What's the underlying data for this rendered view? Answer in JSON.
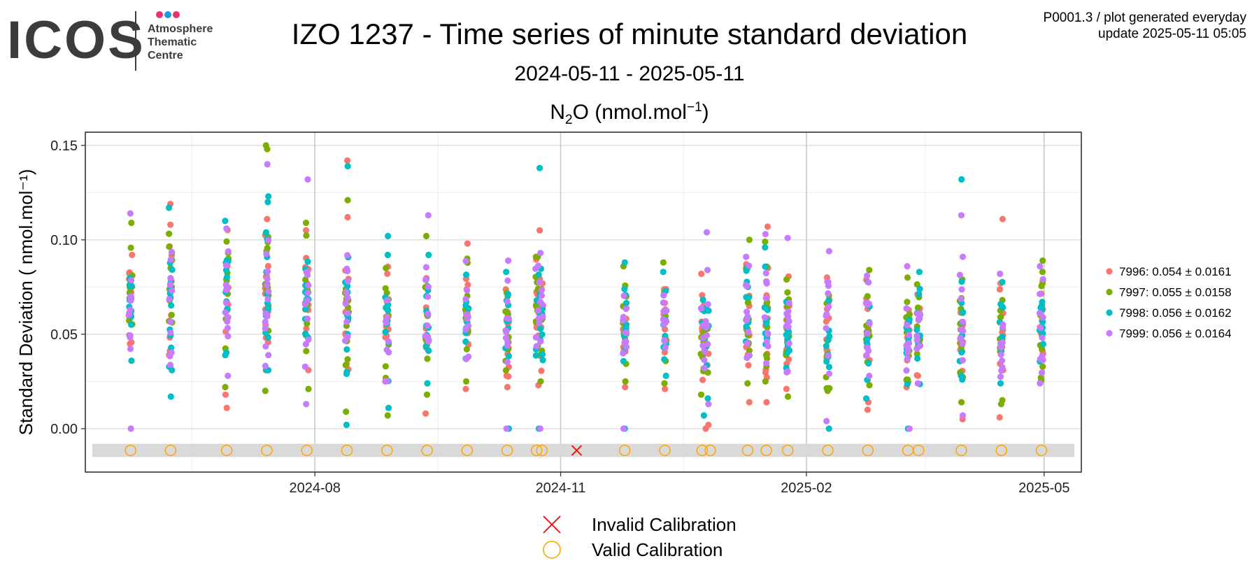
{
  "header": {
    "logo_text": "ICOS",
    "logo_subtitle": [
      "Atmosphere",
      "Thematic",
      "Centre"
    ],
    "logo_dot_colors": [
      "#e8336c",
      "#1a9ae0",
      "#e8336c"
    ],
    "corner_line1": "P0001.3 / plot generated everyday",
    "corner_line2": "update  2025-05-11 05:05"
  },
  "chart_data": {
    "type": "scatter",
    "title": "IZO 1237 - Time series of minute standard deviation",
    "subtitle": "2024-05-11 - 2025-05-11",
    "species": {
      "base": "N",
      "sub": "2",
      "mid": "O (nmol.mol",
      "sup": "−1",
      "end": ")"
    },
    "ylabel": "Standard Deviation ( nmol.mol⁻¹)",
    "xlim": [
      "2024-05-11",
      "2025-05-11"
    ],
    "ylim": [
      -0.023,
      0.157
    ],
    "yticks": [
      0.0,
      0.05,
      0.1,
      0.15
    ],
    "ytick_labels": [
      "0.00",
      "0.05",
      "0.10",
      "0.15"
    ],
    "xticks": [
      "2024-08-01",
      "2024-11-01",
      "2025-02-01",
      "2025-05-01"
    ],
    "xtick_labels": [
      "2024-08",
      "2024-11",
      "2025-02",
      "2025-05"
    ],
    "grid": true,
    "legend_position": "right",
    "series": [
      {
        "name": "7996",
        "label": "7996: 0.054 ± 0.0161",
        "color": "#f8766d"
      },
      {
        "name": "7997",
        "label": "7997: 0.055 ± 0.0158",
        "color": "#7cae00"
      },
      {
        "name": "7998",
        "label": "7998: 0.056 ± 0.0162",
        "color": "#00bfc4"
      },
      {
        "name": "7999",
        "label": "7999: 0.056 ± 0.0164",
        "color": "#c77cff"
      }
    ],
    "calibration_band": [
      -0.015,
      -0.008
    ],
    "calibration_y": -0.0115,
    "calibration_legend": [
      {
        "label": "Invalid Calibration",
        "marker": "cross",
        "color": "#ff0000"
      },
      {
        "label": "Valid Calibration",
        "marker": "circle",
        "color": "#ffa500"
      }
    ],
    "valid_calibrations": [
      "2024-05-24",
      "2024-06-08",
      "2024-06-29",
      "2024-07-14",
      "2024-07-29",
      "2024-08-13",
      "2024-08-28",
      "2024-09-12",
      "2024-09-27",
      "2024-10-12",
      "2024-10-23",
      "2024-10-25",
      "2024-11-25",
      "2024-12-10",
      "2024-12-24",
      "2024-12-27",
      "2025-01-10",
      "2025-01-17",
      "2025-01-25",
      "2025-02-09",
      "2025-02-24",
      "2025-03-11",
      "2025-03-15",
      "2025-03-31",
      "2025-04-15",
      "2025-04-30"
    ],
    "invalid_calibrations": [
      "2024-11-07"
    ],
    "clusters": [
      {
        "date": "2024-05-24",
        "width_days": 1,
        "center": 0.065,
        "spread": 0.014,
        "n": 40,
        "highs": [
          [
            3,
            0.114
          ],
          [
            1,
            0.109
          ],
          [
            0,
            0.092
          ]
        ],
        "lows": [
          [
            3,
            0.0
          ],
          [
            2,
            0.036
          ]
        ]
      },
      {
        "date": "2024-06-08",
        "width_days": 1,
        "center": 0.068,
        "spread": 0.016,
        "n": 44,
        "highs": [
          [
            0,
            0.119
          ],
          [
            2,
            0.117
          ],
          [
            0,
            0.108
          ]
        ],
        "lows": [
          [
            2,
            0.017
          ],
          [
            2,
            0.031
          ],
          [
            0,
            0.039
          ]
        ]
      },
      {
        "date": "2024-06-29",
        "width_days": 1,
        "center": 0.07,
        "spread": 0.016,
        "n": 44,
        "highs": [
          [
            2,
            0.11
          ],
          [
            3,
            0.106
          ]
        ],
        "lows": [
          [
            0,
            0.011
          ],
          [
            0,
            0.018
          ],
          [
            1,
            0.022
          ],
          [
            3,
            0.028
          ]
        ]
      },
      {
        "date": "2024-07-14",
        "width_days": 1,
        "center": 0.075,
        "spread": 0.02,
        "n": 56,
        "highs": [
          [
            1,
            0.15
          ],
          [
            1,
            0.148
          ],
          [
            3,
            0.14
          ],
          [
            2,
            0.123
          ],
          [
            2,
            0.12
          ]
        ],
        "lows": [
          [
            1,
            0.02
          ],
          [
            2,
            0.031
          ]
        ]
      },
      {
        "date": "2024-07-29",
        "width_days": 1,
        "center": 0.068,
        "spread": 0.016,
        "n": 44,
        "highs": [
          [
            3,
            0.132
          ],
          [
            1,
            0.109
          ],
          [
            0,
            0.105
          ]
        ],
        "lows": [
          [
            3,
            0.013
          ],
          [
            1,
            0.021
          ],
          [
            0,
            0.031
          ]
        ]
      },
      {
        "date": "2024-08-13",
        "width_days": 1,
        "center": 0.064,
        "spread": 0.016,
        "n": 44,
        "highs": [
          [
            0,
            0.142
          ],
          [
            2,
            0.139
          ],
          [
            1,
            0.121
          ],
          [
            0,
            0.112
          ]
        ],
        "lows": [
          [
            2,
            0.002
          ],
          [
            1,
            0.009
          ],
          [
            2,
            0.03
          ]
        ]
      },
      {
        "date": "2024-08-28",
        "width_days": 1,
        "center": 0.056,
        "spread": 0.014,
        "n": 40,
        "highs": [
          [
            2,
            0.102
          ],
          [
            2,
            0.092
          ]
        ],
        "lows": [
          [
            1,
            0.007
          ],
          [
            2,
            0.011
          ],
          [
            0,
            0.025
          ]
        ]
      },
      {
        "date": "2024-09-12",
        "width_days": 1,
        "center": 0.058,
        "spread": 0.014,
        "n": 40,
        "highs": [
          [
            3,
            0.113
          ],
          [
            1,
            0.102
          ],
          [
            2,
            0.092
          ]
        ],
        "lows": [
          [
            0,
            0.008
          ],
          [
            1,
            0.018
          ],
          [
            2,
            0.024
          ]
        ]
      },
      {
        "date": "2024-09-27",
        "width_days": 1,
        "center": 0.058,
        "spread": 0.014,
        "n": 42,
        "highs": [
          [
            0,
            0.098
          ],
          [
            1,
            0.09
          ]
        ],
        "lows": [
          [
            0,
            0.021
          ],
          [
            1,
            0.025
          ]
        ]
      },
      {
        "date": "2024-10-12",
        "width_days": 1,
        "center": 0.052,
        "spread": 0.012,
        "n": 40,
        "highs": [
          [
            3,
            0.089
          ],
          [
            2,
            0.083
          ]
        ],
        "lows": [
          [
            3,
            0.0
          ],
          [
            2,
            0.0
          ],
          [
            0,
            0.022
          ],
          [
            0,
            0.028
          ]
        ]
      },
      {
        "date": "2024-10-24",
        "width_days": 3,
        "center": 0.058,
        "spread": 0.015,
        "n": 60,
        "highs": [
          [
            2,
            0.138
          ],
          [
            0,
            0.105
          ],
          [
            3,
            0.093
          ],
          [
            1,
            0.091
          ]
        ],
        "lows": [
          [
            3,
            0.0
          ],
          [
            2,
            0.0
          ],
          [
            0,
            0.023
          ],
          [
            1,
            0.025
          ]
        ]
      },
      {
        "date": "2024-11-25",
        "width_days": 1,
        "center": 0.052,
        "spread": 0.012,
        "n": 40,
        "highs": [
          [
            2,
            0.088
          ],
          [
            1,
            0.086
          ]
        ],
        "lows": [
          [
            2,
            0.0
          ],
          [
            3,
            0.0
          ],
          [
            0,
            0.022
          ],
          [
            1,
            0.025
          ]
        ]
      },
      {
        "date": "2024-12-10",
        "width_days": 1,
        "center": 0.055,
        "spread": 0.013,
        "n": 40,
        "highs": [
          [
            1,
            0.088
          ],
          [
            2,
            0.083
          ]
        ],
        "lows": [
          [
            0,
            0.021
          ],
          [
            1,
            0.024
          ]
        ]
      },
      {
        "date": "2024-12-25",
        "width_days": 3,
        "center": 0.05,
        "spread": 0.013,
        "n": 56,
        "highs": [
          [
            3,
            0.104
          ],
          [
            3,
            0.084
          ],
          [
            0,
            0.082
          ]
        ],
        "lows": [
          [
            0,
            0.002
          ],
          [
            0,
            0.0
          ],
          [
            2,
            0.007
          ],
          [
            3,
            0.013
          ],
          [
            1,
            0.018
          ],
          [
            2,
            0.016
          ]
        ]
      },
      {
        "date": "2025-01-10",
        "width_days": 1,
        "center": 0.058,
        "spread": 0.014,
        "n": 42,
        "highs": [
          [
            1,
            0.1
          ],
          [
            3,
            0.091
          ],
          [
            0,
            0.087
          ]
        ],
        "lows": [
          [
            0,
            0.014
          ],
          [
            1,
            0.024
          ]
        ]
      },
      {
        "date": "2025-01-17",
        "width_days": 1,
        "center": 0.055,
        "spread": 0.014,
        "n": 40,
        "highs": [
          [
            0,
            0.107
          ],
          [
            3,
            0.103
          ],
          [
            2,
            0.096
          ],
          [
            1,
            0.099
          ]
        ],
        "lows": [
          [
            0,
            0.014
          ],
          [
            1,
            0.025
          ]
        ]
      },
      {
        "date": "2025-01-25",
        "width_days": 1,
        "center": 0.052,
        "spread": 0.013,
        "n": 40,
        "highs": [
          [
            3,
            0.101
          ],
          [
            1,
            0.079
          ]
        ],
        "lows": [
          [
            1,
            0.017
          ],
          [
            0,
            0.021
          ]
        ]
      },
      {
        "date": "2025-02-09",
        "width_days": 1,
        "center": 0.05,
        "spread": 0.013,
        "n": 40,
        "highs": [
          [
            3,
            0.094
          ],
          [
            0,
            0.08
          ]
        ],
        "lows": [
          [
            2,
            0.0
          ],
          [
            3,
            0.004
          ],
          [
            1,
            0.02
          ]
        ]
      },
      {
        "date": "2025-02-24",
        "width_days": 1,
        "center": 0.052,
        "spread": 0.013,
        "n": 40,
        "highs": [
          [
            1,
            0.084
          ],
          [
            3,
            0.081
          ]
        ],
        "lows": [
          [
            0,
            0.01
          ],
          [
            0,
            0.014
          ],
          [
            2,
            0.016
          ],
          [
            1,
            0.023
          ]
        ]
      },
      {
        "date": "2025-03-11",
        "width_days": 1,
        "center": 0.05,
        "spread": 0.012,
        "n": 40,
        "highs": [
          [
            3,
            0.086
          ],
          [
            1,
            0.08
          ]
        ],
        "lows": [
          [
            3,
            0.0
          ],
          [
            2,
            0.0
          ],
          [
            0,
            0.022
          ],
          [
            1,
            0.026
          ]
        ]
      },
      {
        "date": "2025-03-15",
        "width_days": 1,
        "center": 0.05,
        "spread": 0.012,
        "n": 36,
        "highs": [
          [
            2,
            0.083
          ],
          [
            2,
            0.074
          ]
        ],
        "lows": [
          [
            3,
            0.024
          ],
          [
            0,
            0.028
          ]
        ]
      },
      {
        "date": "2025-03-31",
        "width_days": 1,
        "center": 0.052,
        "spread": 0.014,
        "n": 42,
        "highs": [
          [
            2,
            0.132
          ],
          [
            3,
            0.113
          ],
          [
            3,
            0.091
          ],
          [
            1,
            0.079
          ]
        ],
        "lows": [
          [
            0,
            0.005
          ],
          [
            3,
            0.007
          ],
          [
            1,
            0.014
          ],
          [
            2,
            0.026
          ]
        ]
      },
      {
        "date": "2025-04-15",
        "width_days": 1,
        "center": 0.05,
        "spread": 0.013,
        "n": 40,
        "highs": [
          [
            0,
            0.111
          ],
          [
            3,
            0.082
          ],
          [
            0,
            0.077
          ]
        ],
        "lows": [
          [
            0,
            0.006
          ],
          [
            1,
            0.013
          ],
          [
            1,
            0.015
          ],
          [
            2,
            0.024
          ]
        ]
      },
      {
        "date": "2025-04-30",
        "width_days": 1,
        "center": 0.054,
        "spread": 0.013,
        "n": 40,
        "highs": [
          [
            1,
            0.089
          ],
          [
            3,
            0.086
          ],
          [
            1,
            0.083
          ]
        ],
        "lows": [
          [
            3,
            0.024
          ],
          [
            1,
            0.027
          ]
        ]
      }
    ]
  }
}
